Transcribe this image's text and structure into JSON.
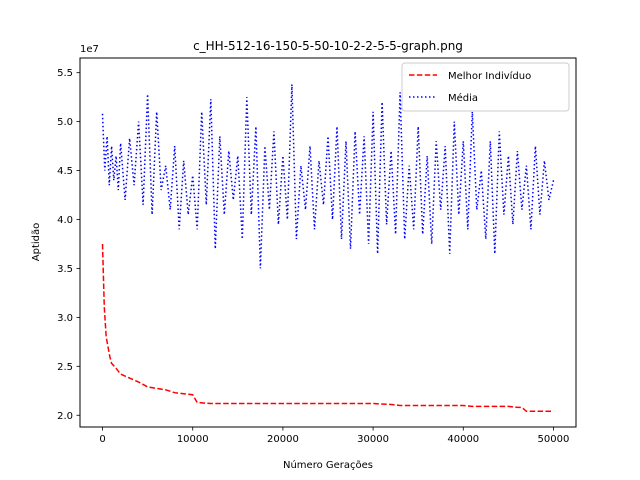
{
  "chart_data": {
    "type": "line",
    "title": "c_HH-512-16-150-5-50-10-2-2-5-5-graph.png",
    "xlabel": "Número Gerações",
    "ylabel": "Aptidão",
    "y_offset_label": "1e7",
    "xlim": [
      -2500,
      52500
    ],
    "ylim": [
      18800000,
      56500000
    ],
    "x_ticks": [
      0,
      10000,
      20000,
      30000,
      40000,
      50000
    ],
    "x_tick_labels": [
      "0",
      "10000",
      "20000",
      "30000",
      "40000",
      "50000"
    ],
    "y_ticks": [
      20000000,
      25000000,
      30000000,
      35000000,
      40000000,
      45000000,
      50000000,
      55000000
    ],
    "y_tick_labels": [
      "2.0",
      "2.5",
      "3.0",
      "3.5",
      "4.0",
      "4.5",
      "5.0",
      "5.5"
    ],
    "grid": false,
    "legend_position": "top-right",
    "series": [
      {
        "name": "Melhor Indivíduo",
        "color": "#ff0000",
        "style": "dashed",
        "x": [
          0,
          200,
          400,
          600,
          800,
          1000,
          1500,
          2000,
          3000,
          4000,
          5000,
          7000,
          8000,
          10000,
          10500,
          12000,
          20000,
          30000,
          32000,
          33000,
          40000,
          41000,
          45000,
          46000,
          46500,
          47000,
          50000
        ],
        "y": [
          37500000,
          31000000,
          28000000,
          27000000,
          26000000,
          25300000,
          24800000,
          24200000,
          23800000,
          23400000,
          22900000,
          22600000,
          22300000,
          22100000,
          21300000,
          21200000,
          21200000,
          21200000,
          21100000,
          21000000,
          21000000,
          20900000,
          20900000,
          20800000,
          20800000,
          20400000,
          20400000
        ]
      },
      {
        "name": "Média",
        "color": "#0000ff",
        "style": "dotted",
        "x": [
          0,
          250,
          500,
          750,
          1000,
          1250,
          1500,
          1750,
          2000,
          2500,
          3000,
          3500,
          4000,
          4500,
          5000,
          5500,
          6000,
          6500,
          7000,
          7500,
          8000,
          8500,
          9000,
          9500,
          10000,
          10500,
          11000,
          11500,
          12000,
          12500,
          13000,
          13500,
          14000,
          14500,
          15000,
          15500,
          16000,
          16500,
          17000,
          17500,
          18000,
          18500,
          19000,
          19500,
          20000,
          20500,
          21000,
          21500,
          22000,
          22500,
          23000,
          23500,
          24000,
          24500,
          25000,
          25500,
          26000,
          26500,
          27000,
          27500,
          28000,
          28500,
          29000,
          29500,
          30000,
          30500,
          31000,
          31500,
          32000,
          32500,
          33000,
          33500,
          34000,
          34500,
          35000,
          35500,
          36000,
          36500,
          37000,
          37500,
          38000,
          38500,
          39000,
          39500,
          40000,
          40500,
          41000,
          41500,
          42000,
          42500,
          43000,
          43500,
          44000,
          44500,
          45000,
          45500,
          46000,
          46500,
          47000,
          47500,
          48000,
          48500,
          49000,
          49500,
          50000
        ],
        "y": [
          50800000,
          45000000,
          48500000,
          43500000,
          47500000,
          44000000,
          46500000,
          43000000,
          47800000,
          42000000,
          48300000,
          43500000,
          50000000,
          41500000,
          52800000,
          40500000,
          51000000,
          43000000,
          45500000,
          41000000,
          47500000,
          39000000,
          46000000,
          40500000,
          44500000,
          39000000,
          51000000,
          41500000,
          52300000,
          37000000,
          48500000,
          40500000,
          47000000,
          42000000,
          46500000,
          38000000,
          52500000,
          40500000,
          49500000,
          35000000,
          47500000,
          41000000,
          49000000,
          39500000,
          46500000,
          40000000,
          53800000,
          38000000,
          45500000,
          41000000,
          47500000,
          39000000,
          46000000,
          41500000,
          48500000,
          40000000,
          49500000,
          38000000,
          48000000,
          37000000,
          49000000,
          40500000,
          48500000,
          37500000,
          51000000,
          36500000,
          52000000,
          39500000,
          47000000,
          38500000,
          53000000,
          38000000,
          45500000,
          39000000,
          49500000,
          38500000,
          46500000,
          37500000,
          48000000,
          41000000,
          47500000,
          36500000,
          50000000,
          40500000,
          48000000,
          39000000,
          51000000,
          41000000,
          45000000,
          38000000,
          48000000,
          36500000,
          49000000,
          40500000,
          46500000,
          39500000,
          47000000,
          41000000,
          45500000,
          39000000,
          47500000,
          40500000,
          46000000,
          42000000,
          44000000
        ]
      }
    ]
  }
}
